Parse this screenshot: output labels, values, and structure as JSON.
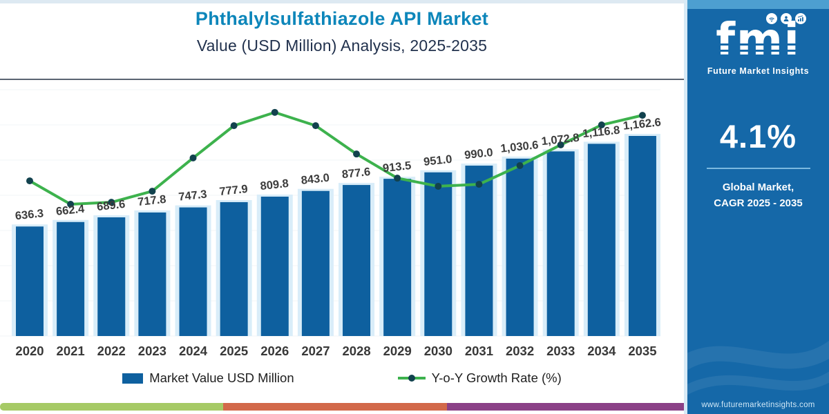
{
  "header": {
    "title": "Phthalylsulfathiazole API Market",
    "subtitle": "Value (USD Million) Analysis, 2025-2035"
  },
  "chart_data": {
    "type": "bar",
    "title": "Phthalylsulfathiazole API Market",
    "subtitle": "Value (USD Million) Analysis, 2025-2035",
    "categories": [
      "2020",
      "2021",
      "2022",
      "2023",
      "2024",
      "2025",
      "2026",
      "2027",
      "2028",
      "2029",
      "2030",
      "2031",
      "2032",
      "2033",
      "2034",
      "2035"
    ],
    "series": [
      {
        "name": "Market Value USD Million",
        "type": "bar",
        "values": [
          636.3,
          662.4,
          689.6,
          717.8,
          747.3,
          777.9,
          809.8,
          843.0,
          877.6,
          913.5,
          951.0,
          990.0,
          1030.6,
          1072.8,
          1116.8,
          1162.6
        ]
      },
      {
        "name": "Y-o-Y Growth Rate (%)",
        "type": "line",
        "axis": "secondary",
        "values": [
          null,
          4.1,
          4.11,
          4.09,
          4.11,
          4.09,
          4.1,
          4.1,
          4.1,
          4.09,
          4.11,
          4.1,
          4.1,
          4.09,
          4.1,
          4.1
        ]
      }
    ],
    "value_labels": [
      "636.3",
      "662.4",
      "689.6",
      "717.8",
      "747.3",
      "777.9",
      "809.8",
      "843.0",
      "877.6",
      "913.5",
      "951.0",
      "990.0",
      "1,030.6",
      "1,072.8",
      "1,116.8",
      "1,162.6"
    ],
    "line_height_frac": [
      0.63,
      0.535,
      0.543,
      0.588,
      0.723,
      0.854,
      0.908,
      0.854,
      0.739,
      0.641,
      0.608,
      0.616,
      0.692,
      0.776,
      0.857,
      0.896
    ],
    "ylim": [
      0,
      1162.6
    ],
    "grid": true,
    "legend_position": "bottom"
  },
  "legend": {
    "bar_label": "Market Value USD Million",
    "line_label": "Y-o-Y Growth Rate (%)"
  },
  "panel": {
    "logo_text": "fmi",
    "logo_subtext": "Future Market Insights",
    "cagr_value": "4.1%",
    "caption_line1": "Global Market,",
    "caption_line2": "CAGR 2025 - 2035",
    "website": "www.futuremarketinsights.com",
    "icons": [
      "wifi-icon",
      "person-icon",
      "growth-chart-icon"
    ]
  },
  "colors": {
    "title": "#0d86ba",
    "subtitle": "#21314d",
    "bar": "#0e609f",
    "bar_halo": "#d9edf9",
    "line": "#3db24d",
    "marker": "#12424e",
    "panel_blue": "#1568a8",
    "stripe_green": "#a6ca66",
    "stripe_orange": "#d2694a",
    "stripe_purple": "#8b4187"
  },
  "footer_stripe": {
    "segments": [
      {
        "name": "green-segment",
        "color": "#a6ca66",
        "width_pct": 32.6
      },
      {
        "name": "orange-segment",
        "color": "#d2694a",
        "width_pct": 32.8
      },
      {
        "name": "purple-segment",
        "color": "#8b4187",
        "width_pct": 34.6
      }
    ]
  }
}
